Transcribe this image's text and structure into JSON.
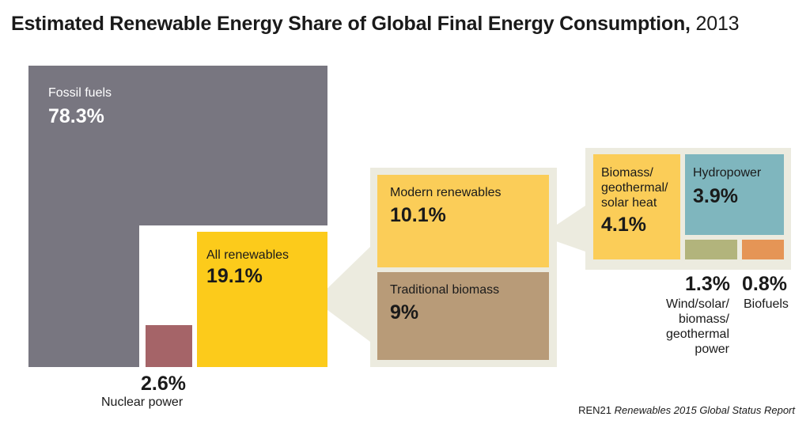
{
  "title": {
    "main": "Estimated Renewable Energy Share of Global Final Energy Consumption",
    "separator": ",",
    "year": "2013"
  },
  "chart_data": {
    "type": "treemap",
    "unit": "%",
    "segments": [
      {
        "name": "Fossil fuels",
        "value": 78.3,
        "label": "78.3%",
        "color": "#787680"
      },
      {
        "name": "All renewables",
        "value": 19.1,
        "label": "19.1%",
        "color": "#fccb1b"
      },
      {
        "name": "Nuclear power",
        "value": 2.6,
        "label": "2.6%",
        "color": "#a56468"
      }
    ],
    "breakdowns": [
      {
        "parent": "All renewables",
        "segments": [
          {
            "name": "Modern renewables",
            "value": 10.1,
            "label": "10.1%",
            "color": "#fbcd58"
          },
          {
            "name": "Traditional biomass",
            "value": 9,
            "label": "9%",
            "color": "#b89b78"
          }
        ]
      },
      {
        "parent": "Modern renewables",
        "segments": [
          {
            "name": "Biomass/ geothermal/ solar heat",
            "value": 4.1,
            "label": "4.1%",
            "color": "#fbcd58"
          },
          {
            "name": "Hydropower",
            "value": 3.9,
            "label": "3.9%",
            "color": "#7fb6be"
          },
          {
            "name": "Wind/solar/ biomass/ geothermal power",
            "value": 1.3,
            "label": "1.3%",
            "color": "#b2b47c"
          },
          {
            "name": "Biofuels",
            "value": 0.8,
            "label": "0.8%",
            "color": "#e59556"
          }
        ]
      }
    ]
  },
  "labels": {
    "fossil": {
      "name": "Fossil fuels",
      "pct": "78.3%"
    },
    "renew": {
      "name": "All renewables",
      "pct": "19.1%"
    },
    "nuclear": {
      "name": "Nuclear power",
      "pct": "2.6%"
    },
    "modern": {
      "name": "Modern renewables",
      "pct": "10.1%"
    },
    "trad": {
      "name": "Traditional biomass",
      "pct": "9%"
    },
    "heat": {
      "line1": "Biomass/",
      "line2": "geothermal/",
      "line3": "solar heat",
      "pct": "4.1%"
    },
    "hydro": {
      "name": "Hydropower",
      "pct": "3.9%"
    },
    "wind": {
      "pct": "1.3%",
      "line1": "Wind/solar/",
      "line2": "biomass/",
      "line3": "geothermal",
      "line4": "power"
    },
    "biofuels": {
      "pct": "0.8%",
      "name": "Biofuels"
    }
  },
  "source": {
    "org": "REN21",
    "report": "Renewables 2015 Global Status Report"
  },
  "colors": {
    "fossil": "#787680",
    "renewables": "#fccb1b",
    "nuclear": "#a56468",
    "modern": "#fbcd58",
    "traditional": "#b89b78",
    "hydro": "#7fb6be",
    "wind": "#b2b47c",
    "biofuels": "#e59556",
    "panel": "#ecebdf"
  }
}
